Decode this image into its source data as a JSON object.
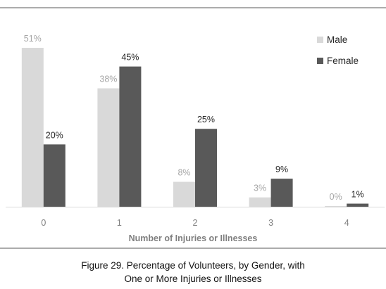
{
  "chart_data": {
    "type": "bar",
    "categories": [
      "0",
      "1",
      "2",
      "3",
      "4"
    ],
    "series": [
      {
        "name": "Male",
        "values": [
          51,
          38,
          8,
          3,
          0
        ],
        "labels": [
          "51%",
          "38%",
          "8%",
          "3%",
          "0%"
        ],
        "color": "#d9d9d9",
        "label_color": "#a6a6a6"
      },
      {
        "name": "Female",
        "values": [
          20,
          45,
          25,
          9,
          1
        ],
        "labels": [
          "20%",
          "45%",
          "25%",
          "9%",
          "1%"
        ],
        "color": "#595959",
        "label_color": "#262626"
      }
    ],
    "xlabel": "Number of Injuries or Illnesses",
    "ylabel": "",
    "ylim": [
      0,
      55
    ],
    "grid": false,
    "legend_position": "top-right"
  },
  "caption": {
    "line1": "Figure 29. Percentage of Volunteers, by Gender, with",
    "line2": "One or More Injuries or Illnesses"
  },
  "colors": {
    "frame": "#595959",
    "axis": "#d9d9d9",
    "tick_text": "#7f7f7f",
    "axis_title": "#7f7f7f"
  }
}
